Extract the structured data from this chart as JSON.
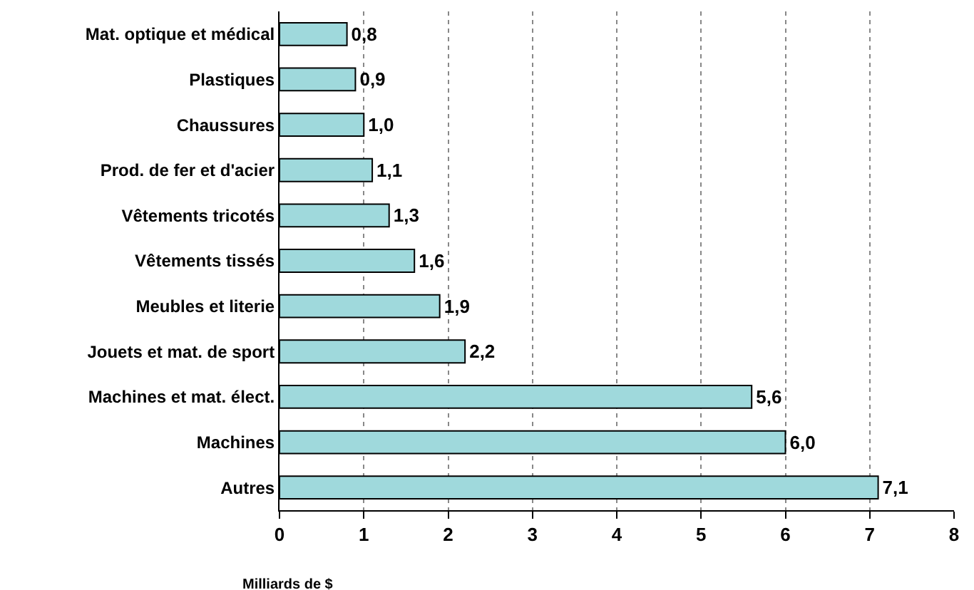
{
  "chart_data": {
    "type": "bar",
    "orientation": "horizontal",
    "xlabel": "Milliards de $",
    "categories": [
      "Mat. optique et médical",
      "Plastiques",
      "Chaussures",
      "Prod. de fer et d'acier",
      "Vêtements tricotés",
      "Vêtements tissés",
      "Meubles et literie",
      "Jouets et mat. de sport",
      "Machines et mat. élect.",
      "Machines",
      "Autres"
    ],
    "values": [
      0.8,
      0.9,
      1.0,
      1.1,
      1.3,
      1.6,
      1.9,
      2.2,
      5.6,
      6.0,
      7.1
    ],
    "value_labels": [
      "0,8",
      "0,9",
      "1,0",
      "1,1",
      "1,3",
      "1,6",
      "1,9",
      "2,2",
      "5,6",
      "6,0",
      "7,1"
    ],
    "color": "#9fd9dc",
    "xlim": [
      0,
      8
    ],
    "xticks": [
      0,
      1,
      2,
      3,
      4,
      5,
      6,
      7,
      8
    ],
    "grid": "x",
    "legend": false
  }
}
